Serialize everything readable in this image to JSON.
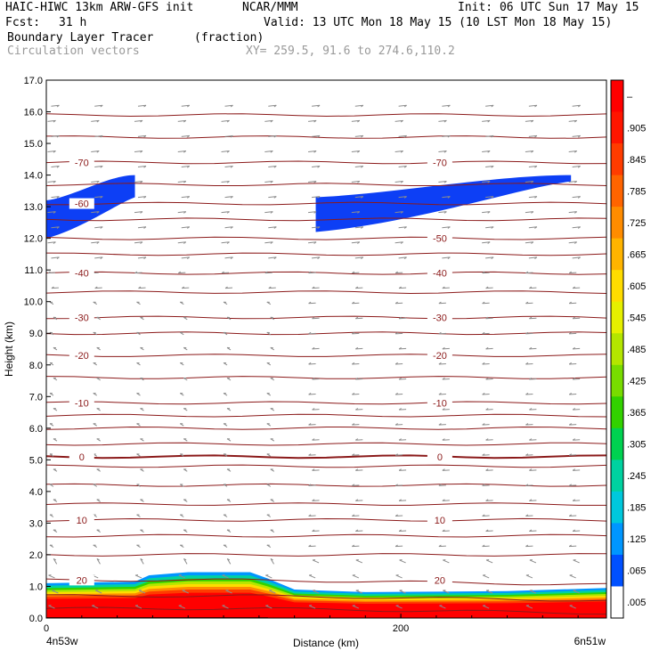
{
  "header": {
    "model": "HAIC-HIWC 13km ARW-GFS init",
    "org": "NCAR/MMM",
    "init": "Init: 06 UTC Sun 17 May 15",
    "fcst_label": "Fcst:",
    "fcst_value": "31 h",
    "valid": "Valid: 13 UTC Mon 18 May 15 (10 LST Mon 18 May 15)",
    "field": "Boundary Layer Tracer",
    "field_units": "(fraction)",
    "overlay": "Circulation vectors",
    "xy": "XY= 259.5, 91.6 to 274.6,110.2"
  },
  "chart_data": {
    "type": "heatmap",
    "ylabel": "Height (km)",
    "xlabel": "Distance (km)",
    "ylim": [
      0,
      17
    ],
    "y_ticks": [
      "0.0",
      "1.0",
      "2.0",
      "3.0",
      "4.0",
      "5.0",
      "6.0",
      "7.0",
      "8.0",
      "9.0",
      "10.0",
      "11.0",
      "12.0",
      "13.0",
      "14.0",
      "15.0",
      "16.0",
      "17.0"
    ],
    "xlim": [
      0,
      316
    ],
    "x_ticks": [
      {
        "value": 0,
        "label": "0"
      },
      {
        "value": 200,
        "label": "200"
      }
    ],
    "x_start_label": "4n53w",
    "x_end_label": "6n51w",
    "colorbar": {
      "labels": [
        "–",
        ".905",
        ".845",
        ".785",
        ".725",
        ".665",
        ".605",
        ".545",
        ".485",
        ".425",
        ".365",
        ".305",
        ".245",
        ".185",
        ".125",
        ".065",
        ".005"
      ],
      "colors": [
        "#ff0000",
        "#ff1500",
        "#ff3c00",
        "#ff6400",
        "#ff8c00",
        "#ffb400",
        "#ffdc00",
        "#e6f000",
        "#b4e600",
        "#78dc00",
        "#32d200",
        "#00d250",
        "#00d2a0",
        "#00c8dc",
        "#0096ff",
        "#0050ff",
        "#ffffff"
      ]
    },
    "temperature_contours": [
      {
        "label": "20",
        "z": 1.2
      },
      {
        "label": "10",
        "z": 3.1
      },
      {
        "label": "0",
        "z": 5.1
      },
      {
        "label": "-10",
        "z": 6.8
      },
      {
        "label": "-20",
        "z": 8.3
      },
      {
        "label": "-30",
        "z": 9.5
      },
      {
        "label": "-40",
        "z": 10.9
      },
      {
        "label": "-50",
        "z": 12.0
      },
      {
        "label": "-60",
        "z": 13.1
      },
      {
        "label": "-70",
        "z": 14.4
      }
    ],
    "contour_levels_km": [
      0.3,
      0.7,
      1.2,
      2.0,
      2.6,
      3.1,
      3.6,
      4.2,
      4.8,
      5.1,
      5.5,
      6.0,
      6.4,
      6.8,
      7.6,
      8.3,
      9.0,
      9.5,
      10.3,
      10.9,
      11.5,
      12.0,
      12.6,
      13.1,
      13.7,
      14.4,
      15.2,
      15.9
    ],
    "boundary_layer_top_km": [
      {
        "x": 0,
        "z": 1.1
      },
      {
        "x": 50,
        "z": 1.15
      },
      {
        "x": 58,
        "z": 1.35
      },
      {
        "x": 80,
        "z": 1.45
      },
      {
        "x": 115,
        "z": 1.45
      },
      {
        "x": 125,
        "z": 1.25
      },
      {
        "x": 140,
        "z": 0.9
      },
      {
        "x": 180,
        "z": 0.82
      },
      {
        "x": 260,
        "z": 0.85
      },
      {
        "x": 316,
        "z": 0.95
      }
    ],
    "upper_tracer_bands": [
      {
        "x": [
          0,
          50
        ],
        "z_low": [
          12.0,
          13.3
        ],
        "z_high": [
          13.2,
          14.0
        ]
      },
      {
        "x": [
          152,
          296
        ],
        "z_low": [
          12.2,
          13.8
        ],
        "z_high": [
          13.3,
          14.0
        ]
      }
    ]
  }
}
